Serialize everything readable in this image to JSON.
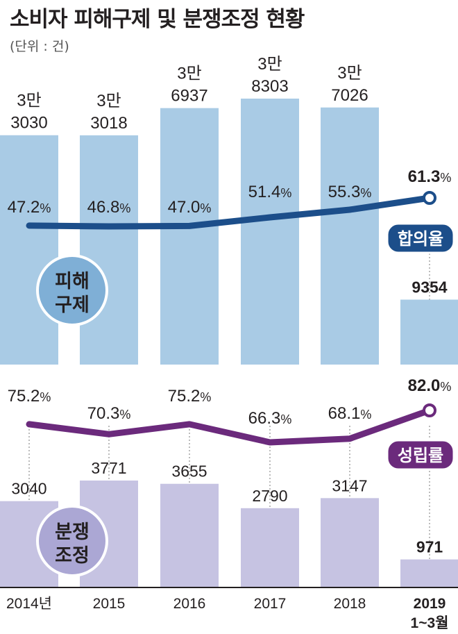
{
  "title": "소비자 피해구제 및 분쟁조정 현황",
  "unit": "(단위 : 건)",
  "chart_data": [
    {
      "type": "bar",
      "name_label": "피해구제",
      "categories": [
        "2014년",
        "2015",
        "2016",
        "2017",
        "2018",
        "2019 1~3월"
      ],
      "values": [
        33030,
        33018,
        36937,
        38303,
        37026,
        9354
      ],
      "value_labels": [
        [
          "3만",
          "3030"
        ],
        [
          "3만",
          "3018"
        ],
        [
          "3만",
          "6937"
        ],
        [
          "3만",
          "8303"
        ],
        [
          "3만",
          "7026"
        ],
        [
          "9354"
        ]
      ],
      "bar_color": "#a9cbe5",
      "ylim": [
        0,
        38303
      ],
      "line": {
        "name": "합의율",
        "values": [
          47.2,
          46.8,
          47.0,
          51.4,
          55.3,
          61.3
        ],
        "labels": [
          "47.2%",
          "46.8%",
          "47.0%",
          "51.4%",
          "55.3%",
          "61.3%"
        ],
        "color": "#1c4e8a"
      }
    },
    {
      "type": "bar",
      "name_label": "분쟁조정",
      "categories": [
        "2014년",
        "2015",
        "2016",
        "2017",
        "2018",
        "2019 1~3월"
      ],
      "values": [
        3040,
        3771,
        3655,
        2790,
        3147,
        971
      ],
      "value_labels": [
        [
          "3040"
        ],
        [
          "3771"
        ],
        [
          "3655"
        ],
        [
          "2790"
        ],
        [
          "3147"
        ],
        [
          "971"
        ]
      ],
      "bar_color": "#c6c3e2",
      "ylim": [
        0,
        3771
      ],
      "line": {
        "name": "성립률",
        "values": [
          75.2,
          70.3,
          75.2,
          66.3,
          68.1,
          82.0
        ],
        "labels": [
          "75.2%",
          "70.3%",
          "75.2%",
          "66.3%",
          "68.1%",
          "82.0%"
        ],
        "color": "#6b2a7c"
      }
    }
  ],
  "x_labels": [
    [
      "2014년"
    ],
    [
      "2015"
    ],
    [
      "2016"
    ],
    [
      "2017"
    ],
    [
      "2018"
    ],
    [
      "2019",
      "1~3월"
    ]
  ],
  "colors": {
    "top_circle_fill": "#7fafd6",
    "bottom_circle_fill": "#aba7d4"
  }
}
